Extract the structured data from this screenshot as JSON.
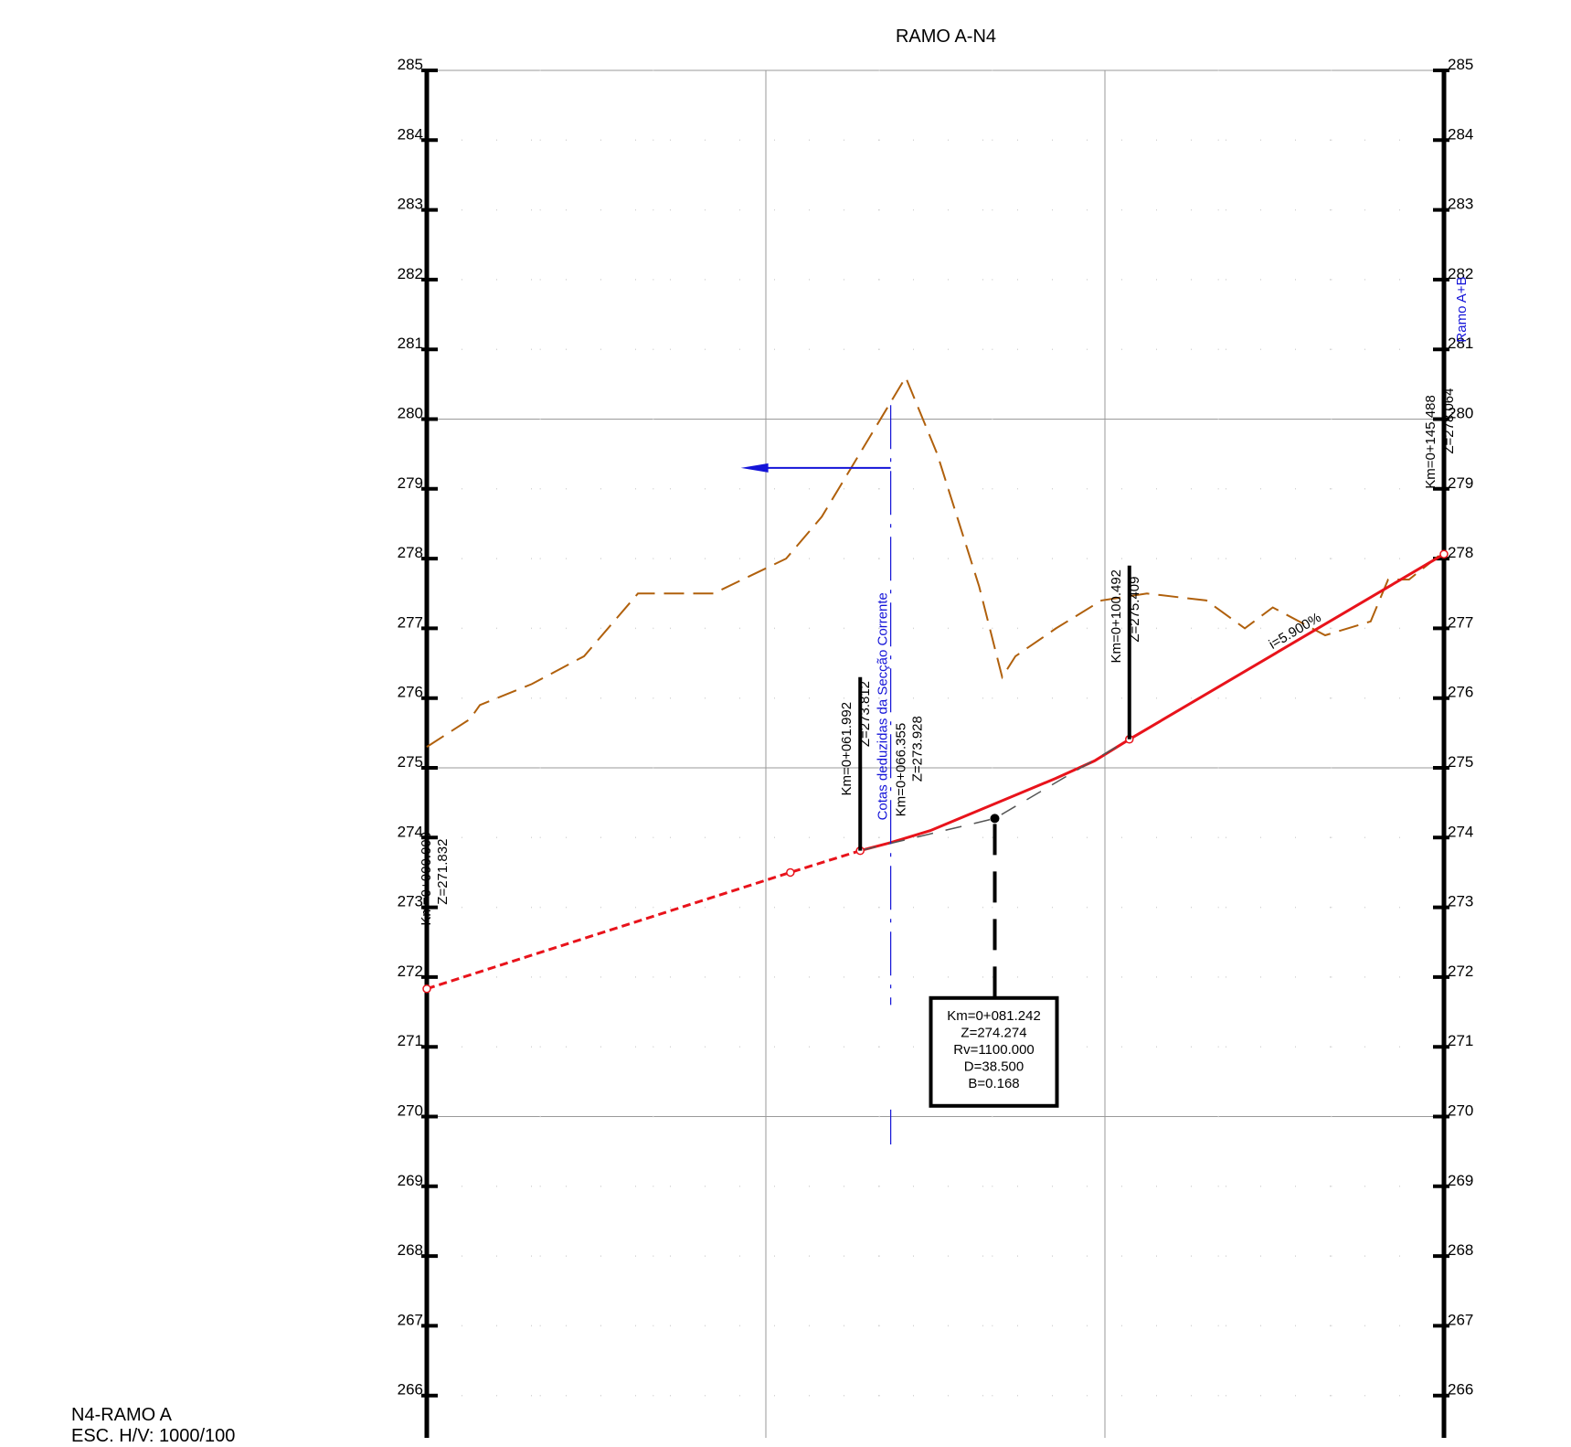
{
  "title": "RAMO A-N4",
  "footer": {
    "name": "N4-RAMO A",
    "scale": "ESC. H/V: 1000/100"
  },
  "colors": {
    "terrain": "#b0600c",
    "grade": "#e8131b",
    "blue": "#1414d8",
    "grid": "#9a9a9a",
    "axis": "#000000"
  },
  "chart_data": {
    "type": "line",
    "xunit": "km",
    "ylim": [
      265,
      285
    ],
    "xlim": [
      0,
      145.488
    ],
    "yticks": [
      "285",
      "284",
      "283",
      "282",
      "281",
      "280",
      "279",
      "278",
      "277",
      "276",
      "275",
      "274",
      "273",
      "272",
      "271",
      "270",
      "269",
      "268",
      "267",
      "266"
    ],
    "series": [
      {
        "kind": "terrain",
        "points": [
          [
            0,
            275.3
          ],
          [
            6.2,
            275.7
          ],
          [
            7.6,
            275.9
          ],
          [
            15,
            276.2
          ],
          [
            22.5,
            276.6
          ],
          [
            30.2,
            277.5
          ],
          [
            41,
            277.5
          ],
          [
            51.4,
            278.0
          ],
          [
            56.5,
            278.6
          ],
          [
            62.5,
            279.6
          ],
          [
            68.5,
            280.6
          ],
          [
            73,
            279.5
          ],
          [
            79,
            277.6
          ],
          [
            82.3,
            276.3
          ],
          [
            84.2,
            276.6
          ],
          [
            90,
            277.0
          ],
          [
            96.5,
            277.4
          ],
          [
            103,
            277.5
          ],
          [
            111.5,
            277.4
          ],
          [
            117,
            277.0
          ],
          [
            121,
            277.3
          ],
          [
            128.5,
            276.9
          ],
          [
            135,
            277.1
          ],
          [
            137.5,
            277.7
          ],
          [
            140.5,
            277.7
          ],
          [
            145.488,
            278.1
          ]
        ]
      },
      {
        "kind": "grade-dashed",
        "points": [
          [
            0,
            271.832
          ],
          [
            52,
            273.5
          ],
          [
            61.992,
            273.812
          ]
        ]
      },
      {
        "kind": "grade",
        "points": [
          [
            61.992,
            273.812
          ],
          [
            66.355,
            273.928
          ],
          [
            72,
            274.1
          ],
          [
            78,
            274.35
          ],
          [
            84,
            274.6
          ],
          [
            90,
            274.85
          ],
          [
            95.5,
            275.1
          ],
          [
            100.492,
            275.409
          ],
          [
            145.488,
            278.064
          ]
        ]
      },
      {
        "kind": "tangent",
        "points": [
          [
            61.992,
            273.812
          ],
          [
            81.242,
            274.274
          ],
          [
            100.492,
            275.409
          ]
        ]
      }
    ],
    "vertices": [
      {
        "km_label": "Km=0+000.000",
        "z_label": "Z=271.832",
        "x": 0,
        "y": 271.832
      },
      {
        "km_label": "Km=0+061.992",
        "z_label": "Z=273.812",
        "x": 61.992,
        "y": 273.812
      },
      {
        "km_label": "Km=0+100.492",
        "z_label": "Z=275.409",
        "x": 100.492,
        "y": 275.409
      },
      {
        "km_label": "Km=0+145.488",
        "z_label": "Z=278.064",
        "x": 145.488,
        "y": 278.064
      }
    ],
    "section": {
      "km_label": "Km=0+066.355",
      "z_label": "Z=273.928",
      "caption": "Cotas deduzidas da Secção Corrente",
      "x": 66.355
    },
    "pvi_box": {
      "x": 81.242,
      "y": 274.274,
      "lines": [
        "Km=0+081.242",
        "Z=274.274",
        "Rv=1100.000",
        "D=38.500",
        "B=0.168"
      ]
    },
    "slope_label": "i=5.900%",
    "ramp_label": "Ramo A+B"
  }
}
